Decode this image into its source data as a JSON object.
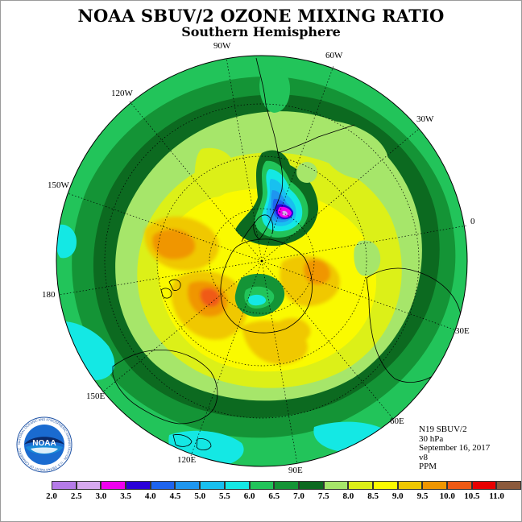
{
  "header": {
    "title": "NOAA SBUV/2 OZONE MIXING RATIO",
    "subtitle": "Southern Hemisphere"
  },
  "longitude_labels": {
    "w90": "90W",
    "w60": "60W",
    "w30": "30W",
    "w120": "120W",
    "w150": "150W",
    "zero": "0",
    "d180": "180",
    "e30": "30E",
    "e60": "60E",
    "e90": "90E",
    "e120": "120E",
    "e150": "150E"
  },
  "info": {
    "satellite": "N19 SBUV/2",
    "level": "30 hPa",
    "date": "September 16, 2017",
    "version": "v8",
    "units": "PPM"
  },
  "logo": {
    "text": "NOAA",
    "ring_text": "NATIONAL OCEANIC AND ATMOSPHERIC ADMINISTRATION · U.S. DEPARTMENT OF COMMERCE"
  },
  "colorbar": {
    "tick_labels": [
      "2.0",
      "2.5",
      "3.0",
      "3.5",
      "4.0",
      "4.5",
      "5.0",
      "5.5",
      "6.0",
      "6.5",
      "7.0",
      "7.5",
      "8.0",
      "8.5",
      "9.0",
      "9.5",
      "10.0",
      "10.5",
      "11.0"
    ],
    "colors": [
      "#b57be8",
      "#d7a9f0",
      "#f000f0",
      "#2a00d8",
      "#1e64ee",
      "#1e96f0",
      "#18c0f0",
      "#14e8e4",
      "#22c45a",
      "#149436",
      "#0c6a20",
      "#a6e66a",
      "#dcf018",
      "#fafa00",
      "#f0c800",
      "#f09600",
      "#f05a14",
      "#e80000",
      "#8c5a3c"
    ]
  }
}
